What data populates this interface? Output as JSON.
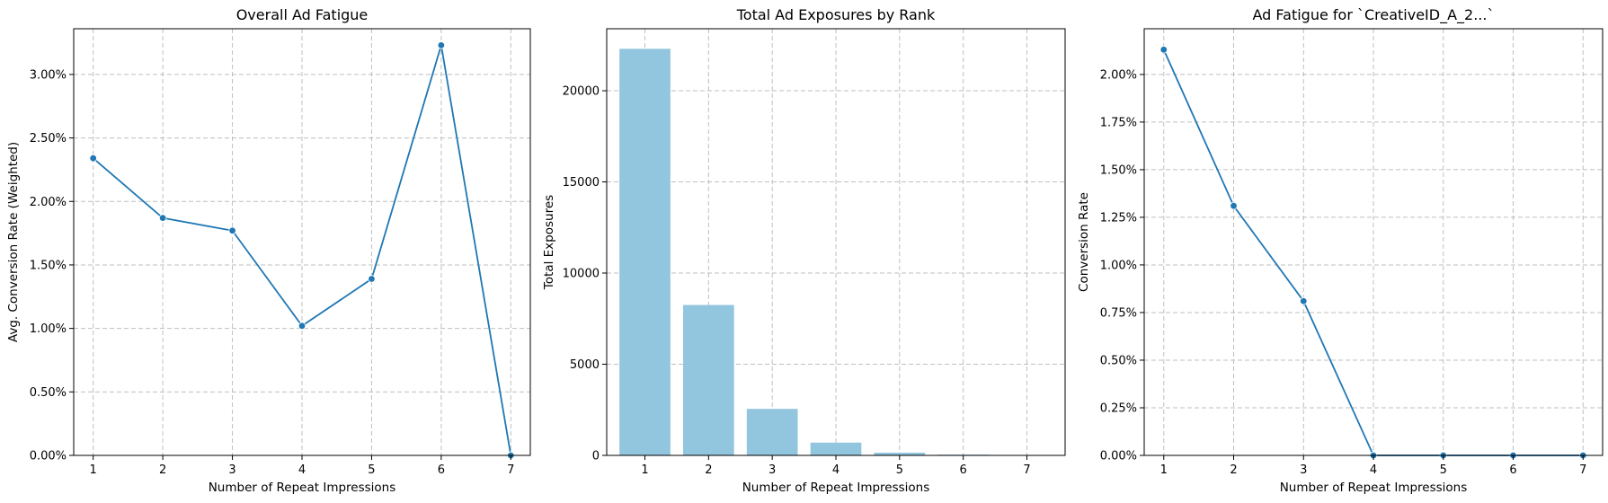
{
  "chart_data": [
    {
      "type": "line",
      "title": "Overall Ad Fatigue",
      "xlabel": "Number of Repeat Impressions",
      "ylabel": "Avg. Conversion Rate (Weighted)",
      "x": [
        1,
        2,
        3,
        4,
        5,
        6,
        7
      ],
      "x_ticks": [
        "1",
        "2",
        "3",
        "4",
        "5",
        "6",
        "7"
      ],
      "y_ticks": [
        "0.00%",
        "0.50%",
        "1.00%",
        "1.50%",
        "2.00%",
        "2.50%",
        "3.00%"
      ],
      "y_tick_values": [
        0,
        0.005,
        0.01,
        0.015,
        0.02,
        0.025,
        0.03
      ],
      "series": [
        {
          "values": [
            0.0234,
            0.0187,
            0.0177,
            0.0102,
            0.0139,
            0.0323,
            0.0
          ]
        }
      ],
      "xlim": [
        0.72,
        7.28
      ],
      "ylim": [
        0,
        0.0336
      ],
      "grid": true,
      "color": "#1f77b4"
    },
    {
      "type": "bar",
      "title": "Total Ad Exposures by Rank",
      "xlabel": "Number of Repeat Impressions",
      "ylabel": "Total Exposures",
      "categories": [
        "1",
        "2",
        "3",
        "4",
        "5",
        "6",
        "7"
      ],
      "values": [
        22300,
        8250,
        2550,
        700,
        150,
        40,
        10
      ],
      "y_ticks": [
        "0",
        "5000",
        "10000",
        "15000",
        "20000"
      ],
      "y_tick_values": [
        0,
        5000,
        10000,
        15000,
        20000
      ],
      "ylim": [
        0,
        23400
      ],
      "grid": true,
      "color": "#92c5de"
    },
    {
      "type": "line",
      "title": "Ad Fatigue for `CreativeID_A_2...`",
      "xlabel": "Number of Repeat Impressions",
      "ylabel": "Conversion Rate",
      "x": [
        1,
        2,
        3,
        4,
        5,
        6,
        7
      ],
      "x_ticks": [
        "1",
        "2",
        "3",
        "4",
        "5",
        "6",
        "7"
      ],
      "y_ticks": [
        "0.00%",
        "0.25%",
        "0.50%",
        "0.75%",
        "1.00%",
        "1.25%",
        "1.50%",
        "1.75%",
        "2.00%"
      ],
      "y_tick_values": [
        0,
        0.0025,
        0.005,
        0.0075,
        0.01,
        0.0125,
        0.015,
        0.0175,
        0.02
      ],
      "series": [
        {
          "values": [
            0.0213,
            0.0131,
            0.0081,
            0.0,
            0.0,
            0.0,
            0.0
          ]
        }
      ],
      "xlim": [
        0.72,
        7.28
      ],
      "ylim": [
        0,
        0.0224
      ],
      "grid": true,
      "color": "#1f77b4"
    }
  ]
}
